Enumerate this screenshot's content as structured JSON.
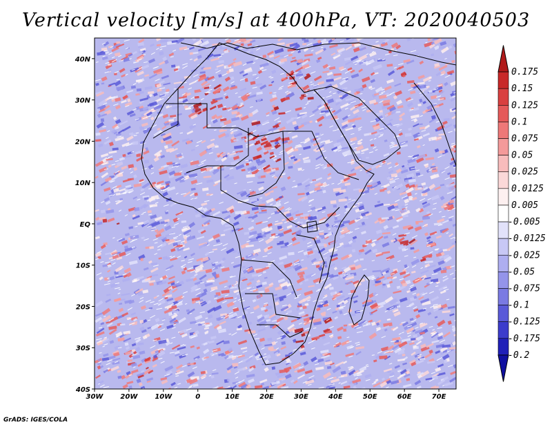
{
  "title": "Vertical velocity [m/s] at 400hPa, VT: 2020040503",
  "footer": "GrADS: IGES/COLA",
  "map": {
    "lon_labels": [
      "30W",
      "20W",
      "10W",
      "0",
      "10E",
      "20E",
      "30E",
      "40E",
      "50E",
      "60E",
      "70E"
    ],
    "lat_labels": [
      "40N",
      "30N",
      "20N",
      "10N",
      "EQ",
      "10S",
      "20S",
      "30S",
      "40S"
    ],
    "lon_range": [
      -30,
      75
    ],
    "lat_range": [
      -40,
      45
    ]
  },
  "colorbar": {
    "levels": [
      "0.175",
      "0.15",
      "0.125",
      "0.1",
      "0.075",
      "0.05",
      "0.025",
      "0.0125",
      "0.005",
      "-0.005",
      "-0.0125",
      "-0.025",
      "-0.05",
      "-0.075",
      "-0.1",
      "-0.125",
      "-0.175",
      "-0.2"
    ],
    "colors": [
      "#b01a1a",
      "#c82828",
      "#d94040",
      "#e55a5a",
      "#ee7878",
      "#f49a9a",
      "#f8bcbc",
      "#fbd8d8",
      "#fdf0f0",
      "#ffffff",
      "#e2e2fa",
      "#c8c8f5",
      "#aeaef0",
      "#9494ea",
      "#7a7ae2",
      "#5a5ad8",
      "#3c3ccc",
      "#2020b8",
      "#1010a0"
    ]
  }
}
